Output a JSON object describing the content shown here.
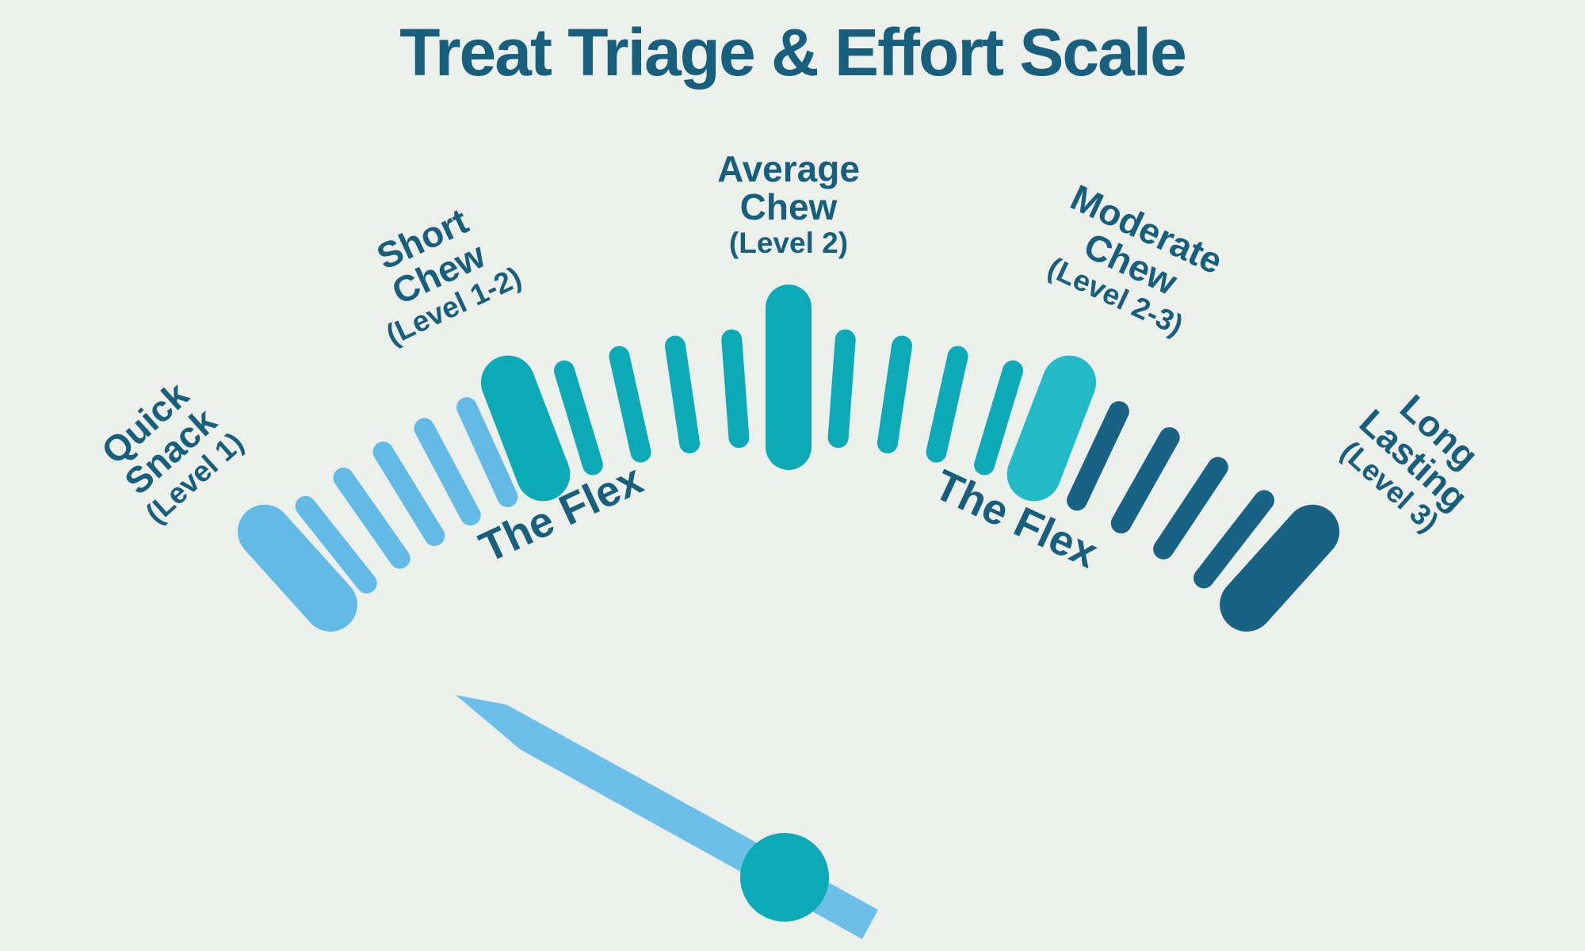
{
  "title": "Treat Triage & Effort Scale",
  "colors": {
    "background": "#edf0ea",
    "text": "#175f7c",
    "light_blue": "#62bbe5",
    "teal": "#0ca9b6",
    "bright_teal": "#22bac6",
    "dark_blue": "#186384",
    "needle": "#6bbfe8",
    "pivot": "#0ca9b6"
  },
  "labels": [
    {
      "id": "quick-snack",
      "lines": [
        "Quick",
        "Snack"
      ],
      "level": "(Level 1)"
    },
    {
      "id": "short-chew",
      "lines": [
        "Short",
        "Chew"
      ],
      "level": "(Level 1-2)"
    },
    {
      "id": "average-chew",
      "lines": [
        "Average",
        "Chew"
      ],
      "level": "(Level 2)"
    },
    {
      "id": "moderate-chew",
      "lines": [
        "Moderate",
        "Chew"
      ],
      "level": "(Level 2-3)"
    },
    {
      "id": "long-lasting",
      "lines": [
        "Long",
        "Lasting"
      ],
      "level": "(Level 3)"
    }
  ],
  "flex_labels": {
    "left": "The Flex",
    "right": "The Flex"
  },
  "gauge": {
    "ticks": [
      {
        "kind": "anchor",
        "color": "light_blue",
        "angle": -42
      },
      {
        "kind": "minor",
        "color": "light_blue",
        "angle": -38.5
      },
      {
        "kind": "minor",
        "color": "light_blue",
        "angle": -35
      },
      {
        "kind": "minor",
        "color": "light_blue",
        "angle": -31.5
      },
      {
        "kind": "minor",
        "color": "light_blue",
        "angle": -28
      },
      {
        "kind": "minor",
        "color": "light_blue",
        "angle": -24.5
      },
      {
        "kind": "anchor",
        "color": "teal",
        "angle": -21
      },
      {
        "kind": "minor",
        "color": "teal",
        "angle": -16.8
      },
      {
        "kind": "minor",
        "color": "teal",
        "angle": -12.6
      },
      {
        "kind": "minor",
        "color": "teal",
        "angle": -8.4
      },
      {
        "kind": "minor",
        "color": "teal",
        "angle": -4.2
      },
      {
        "kind": "major",
        "color": "teal",
        "angle": 0
      },
      {
        "kind": "minor",
        "color": "teal",
        "angle": 4.2
      },
      {
        "kind": "minor",
        "color": "teal",
        "angle": 8.4
      },
      {
        "kind": "minor",
        "color": "teal",
        "angle": 12.6
      },
      {
        "kind": "minor",
        "color": "teal",
        "angle": 16.8
      },
      {
        "kind": "anchor",
        "color": "bright_teal",
        "angle": 21
      },
      {
        "kind": "minor",
        "color": "dark_blue",
        "angle": 25.2
      },
      {
        "kind": "minor",
        "color": "dark_blue",
        "angle": 29.4
      },
      {
        "kind": "minor",
        "color": "dark_blue",
        "angle": 33.6
      },
      {
        "kind": "minor",
        "color": "dark_blue",
        "angle": 37.8
      },
      {
        "kind": "anchor",
        "color": "dark_blue",
        "angle": 42
      }
    ]
  }
}
